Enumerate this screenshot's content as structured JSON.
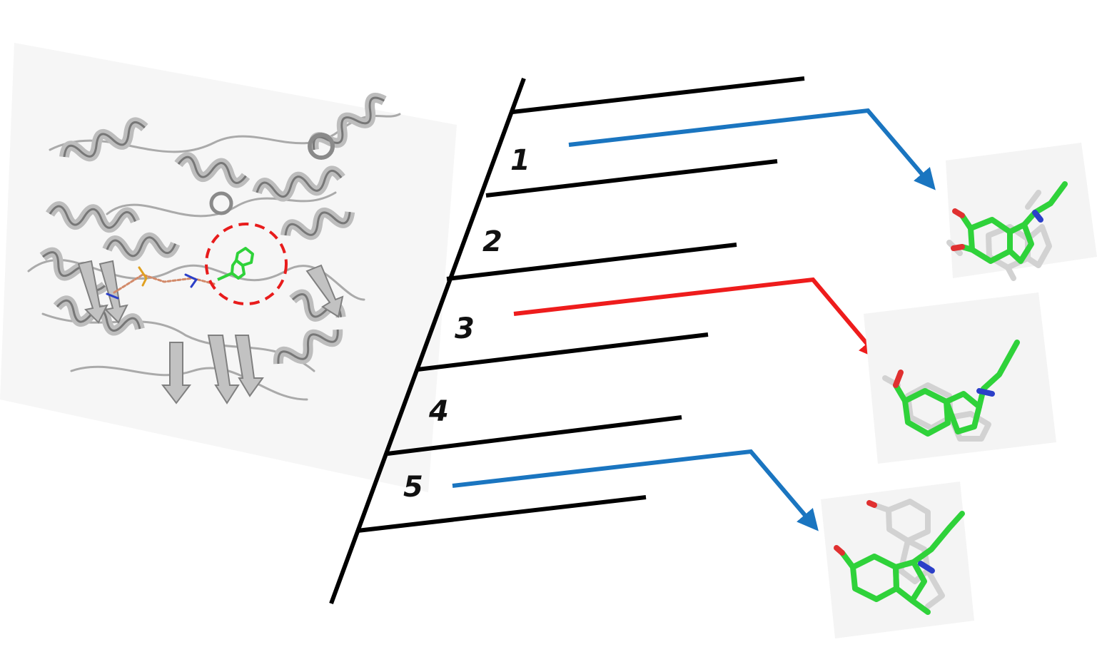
{
  "diagram": {
    "bins": [
      {
        "label": "1"
      },
      {
        "label": "2"
      },
      {
        "label": "3"
      },
      {
        "label": "4"
      },
      {
        "label": "5"
      }
    ],
    "arrow_colors": {
      "blue": "#1a75c0",
      "red": "#ee1c1c"
    },
    "colors": {
      "protein": "#b8b8b8",
      "ligand_green": "#2fd23a",
      "nitrogen_blue": "#2b3fc8",
      "oxygen_red": "#e03030",
      "reference_white": "#d8d8d8",
      "highlight_circle": "#e81c1c",
      "ladder_line": "#000000"
    }
  }
}
